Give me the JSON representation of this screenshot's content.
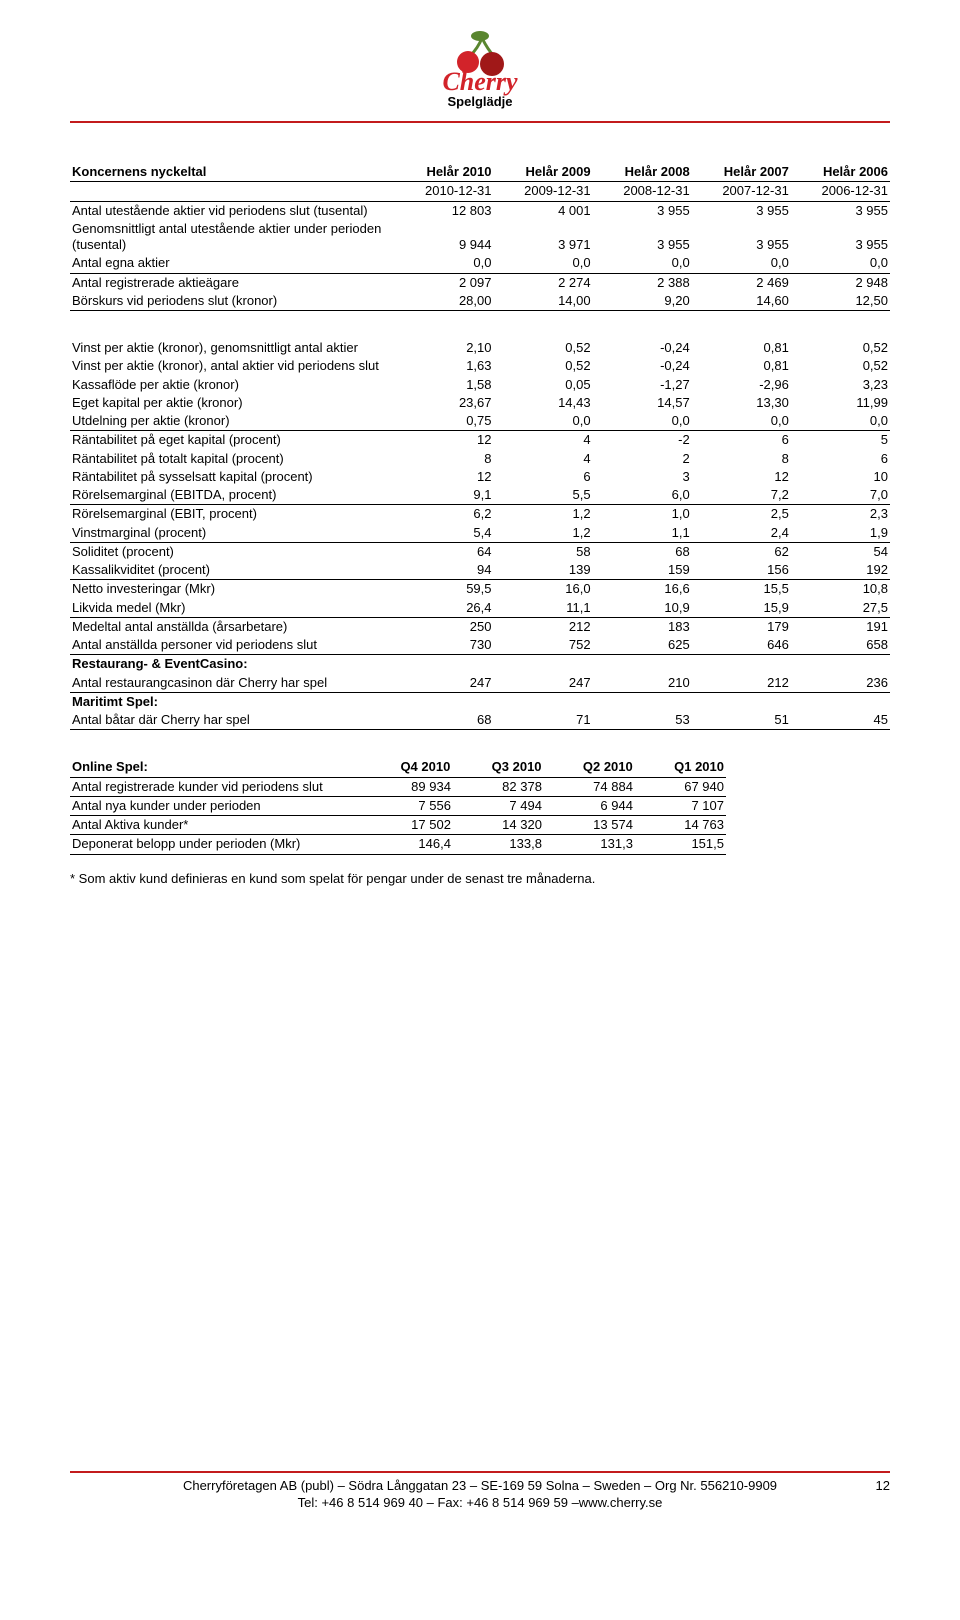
{
  "logo": {
    "brand": "Cherry",
    "tagline_sv": "Spelglädje"
  },
  "colors": {
    "accent": "#c31b1c",
    "cherry_red": "#d2232a",
    "cherry_green": "#5a862f",
    "text": "#000000",
    "background": "#ffffff"
  },
  "typography": {
    "font_family": "Arial",
    "base_size_pt": 10,
    "bold_headers": true
  },
  "table1": {
    "title": "Koncernens nyckeltal",
    "cols": [
      "Helår 2010",
      "Helår 2009",
      "Helår 2008",
      "Helår 2007",
      "Helår 2006"
    ],
    "date_row": [
      "2010-12-31",
      "2009-12-31",
      "2008-12-31",
      "2007-12-31",
      "2006-12-31"
    ],
    "rows": [
      {
        "label": "Antal utestående aktier vid periodens slut (tusental)",
        "v": [
          "12 803",
          "4 001",
          "3 955",
          "3 955",
          "3 955"
        ]
      },
      {
        "label": "Genomsnittligt antal utestående aktier under perioden (tusental)",
        "v": [
          "9 944",
          "3 971",
          "3 955",
          "3 955",
          "3 955"
        ]
      },
      {
        "label": "Antal egna aktier",
        "v": [
          "0,0",
          "0,0",
          "0,0",
          "0,0",
          "0,0"
        ],
        "underline": true
      },
      {
        "label": "Antal registrerade aktieägare",
        "v": [
          "2 097",
          "2 274",
          "2 388",
          "2 469",
          "2 948"
        ]
      },
      {
        "label": "Börskurs vid periodens slut (kronor)",
        "v": [
          "28,00",
          "14,00",
          "9,20",
          "14,60",
          "12,50"
        ],
        "underline": true
      }
    ]
  },
  "table2": {
    "rows": [
      {
        "label": "Vinst per aktie (kronor), genomsnittligt antal aktier",
        "v": [
          "2,10",
          "0,52",
          "-0,24",
          "0,81",
          "0,52"
        ]
      },
      {
        "label": "Vinst per aktie (kronor), antal aktier vid periodens slut",
        "v": [
          "1,63",
          "0,52",
          "-0,24",
          "0,81",
          "0,52"
        ]
      },
      {
        "label": "Kassaflöde per aktie (kronor)",
        "v": [
          "1,58",
          "0,05",
          "-1,27",
          "-2,96",
          "3,23"
        ]
      },
      {
        "label": "Eget kapital per aktie (kronor)",
        "v": [
          "23,67",
          "14,43",
          "14,57",
          "13,30",
          "11,99"
        ]
      },
      {
        "label": "Utdelning per aktie (kronor)",
        "v": [
          "0,75",
          "0,0",
          "0,0",
          "0,0",
          "0,0"
        ],
        "underline": true
      },
      {
        "label": "Räntabilitet på eget kapital (procent)",
        "v": [
          "12",
          "4",
          "-2",
          "6",
          "5"
        ]
      },
      {
        "label": "Räntabilitet på totalt kapital (procent)",
        "v": [
          "8",
          "4",
          "2",
          "8",
          "6"
        ]
      },
      {
        "label": "Räntabilitet på sysselsatt kapital (procent)",
        "v": [
          "12",
          "6",
          "3",
          "12",
          "10"
        ]
      },
      {
        "label": "Rörelsemarginal (EBITDA, procent)",
        "v": [
          "9,1",
          "5,5",
          "6,0",
          "7,2",
          "7,0"
        ],
        "underline": true
      },
      {
        "label": "Rörelsemarginal (EBIT, procent)",
        "v": [
          "6,2",
          "1,2",
          "1,0",
          "2,5",
          "2,3"
        ]
      },
      {
        "label": "Vinstmarginal (procent)",
        "v": [
          "5,4",
          "1,2",
          "1,1",
          "2,4",
          "1,9"
        ],
        "underline": true
      },
      {
        "label": "Soliditet (procent)",
        "v": [
          "64",
          "58",
          "68",
          "62",
          "54"
        ]
      },
      {
        "label": "Kassalikviditet (procent)",
        "v": [
          "94",
          "139",
          "159",
          "156",
          "192"
        ],
        "underline": true
      },
      {
        "label": "Netto investeringar (Mkr)",
        "v": [
          "59,5",
          "16,0",
          "16,6",
          "15,5",
          "10,8"
        ]
      },
      {
        "label": "Likvida medel (Mkr)",
        "v": [
          "26,4",
          "11,1",
          "10,9",
          "15,9",
          "27,5"
        ],
        "underline": true
      },
      {
        "label": "Medeltal antal anställda (årsarbetare)",
        "v": [
          "250",
          "212",
          "183",
          "179",
          "191"
        ]
      },
      {
        "label": "Antal anställda personer vid periodens slut",
        "v": [
          "730",
          "752",
          "625",
          "646",
          "658"
        ],
        "underline": true
      },
      {
        "section": "Restaurang- & EventCasino:"
      },
      {
        "label": "Antal restaurangcasinon där Cherry har spel",
        "v": [
          "247",
          "247",
          "210",
          "212",
          "236"
        ],
        "underline": true
      },
      {
        "section": "Maritimt Spel:"
      },
      {
        "label": "Antal båtar där Cherry har spel",
        "v": [
          "68",
          "71",
          "53",
          "51",
          "45"
        ],
        "underline": true
      }
    ]
  },
  "table3": {
    "title": "Online Spel:",
    "cols": [
      "Q4 2010",
      "Q3 2010",
      "Q2 2010",
      "Q1 2010"
    ],
    "rows": [
      {
        "label": "Antal registrerade kunder vid periodens slut",
        "v": [
          "89 934",
          "82 378",
          "74 884",
          "67 940"
        ],
        "underline": true
      },
      {
        "label": "Antal nya kunder under perioden",
        "v": [
          "7 556",
          "7 494",
          "6 944",
          "7 107"
        ],
        "underline": true
      },
      {
        "label": "Antal Aktiva kunder*",
        "v": [
          "17 502",
          "14 320",
          "13 574",
          "14 763"
        ],
        "underline": true
      },
      {
        "label": "Deponerat belopp under perioden (Mkr)",
        "v": [
          "146,4",
          "133,8",
          "131,3",
          "151,5"
        ],
        "underline": true
      }
    ]
  },
  "note": "* Som aktiv kund definieras en kund som spelat för pengar under de senast tre månaderna.",
  "footer": {
    "line1": "Cherryföretagen AB (publ) – Södra Långgatan 23 – SE-169 59 Solna – Sweden – Org Nr. 556210-9909",
    "line2": "Tel: +46 8 514 969 40 – Fax: +46 8 514 969 59 –www.cherry.se",
    "page_number": "12"
  }
}
